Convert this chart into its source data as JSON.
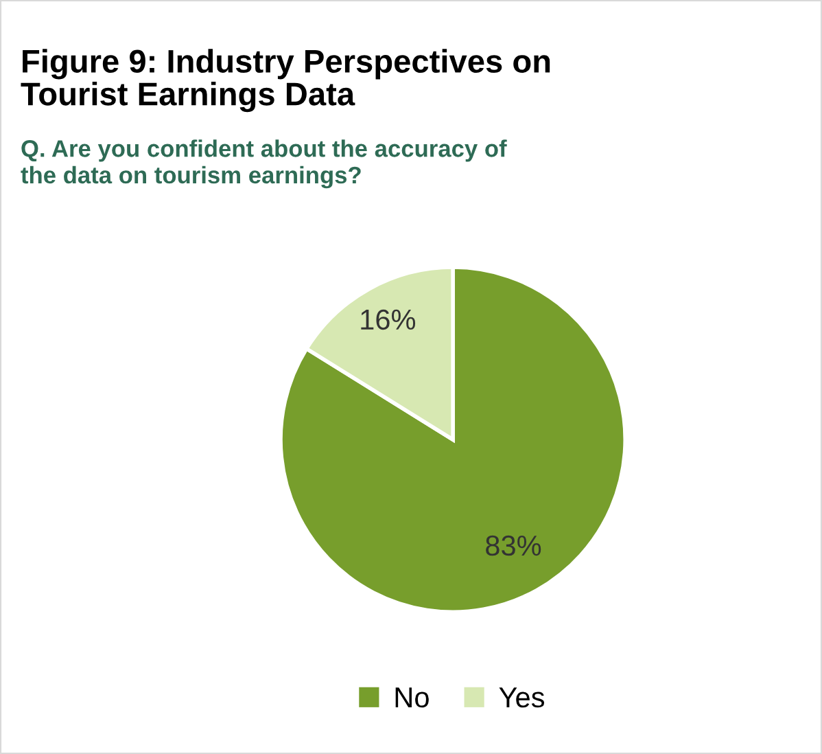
{
  "chart_data": {
    "type": "pie",
    "title": "Figure 9: Industry Perspectives on\nTourist Earnings Data",
    "subtitle": "Q. Are you confident about the accuracy of\nthe data on tourism earnings?",
    "categories": [
      "No",
      "Yes"
    ],
    "values": [
      83,
      16
    ],
    "colors": [
      "#779e2c",
      "#d7e8b2"
    ],
    "value_labels": [
      "83%",
      "16%"
    ],
    "legend": "bottom"
  }
}
